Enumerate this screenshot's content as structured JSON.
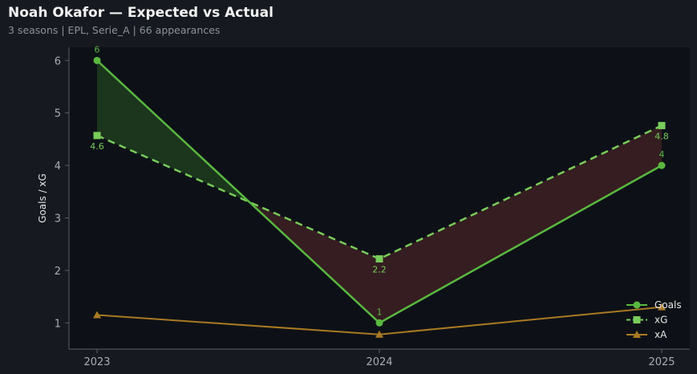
{
  "header": {
    "title": "Noah Okafor — Expected vs Actual",
    "subtitle": "3 seasons | EPL, Serie_A | 66 appearances"
  },
  "colors": {
    "background": "#161a20",
    "plot_background": "#0d1117",
    "goals": "#59b840",
    "xg": "#78cc5a",
    "xa": "#a97a22",
    "overperform_fill": "#1e3a1e",
    "underperform_fill": "#3a1f22"
  },
  "chart_data": {
    "type": "line",
    "title": "Noah Okafor — Expected vs Actual",
    "subtitle": "3 seasons | EPL, Serie_A | 66 appearances",
    "xlabel": "",
    "ylabel": "Goals / xG",
    "categories": [
      "2023",
      "2024",
      "2025"
    ],
    "yticks": [
      1,
      2,
      3,
      4,
      5,
      6
    ],
    "ylim": [
      0.5,
      6.25
    ],
    "grid": false,
    "legend_position": "bottom-right",
    "series": [
      {
        "name": "Goals",
        "values": [
          6,
          1,
          4
        ],
        "labels": [
          "6",
          "1",
          "4"
        ],
        "marker": "circle",
        "style": "solid"
      },
      {
        "name": "xG",
        "values": [
          4.57,
          2.22,
          4.76
        ],
        "labels": [
          "4.6",
          "2.2",
          "4.8"
        ],
        "marker": "square",
        "style": "dashed"
      },
      {
        "name": "xA",
        "values": [
          1.15,
          0.78,
          1.3
        ],
        "marker": "triangle",
        "style": "solid"
      }
    ]
  }
}
